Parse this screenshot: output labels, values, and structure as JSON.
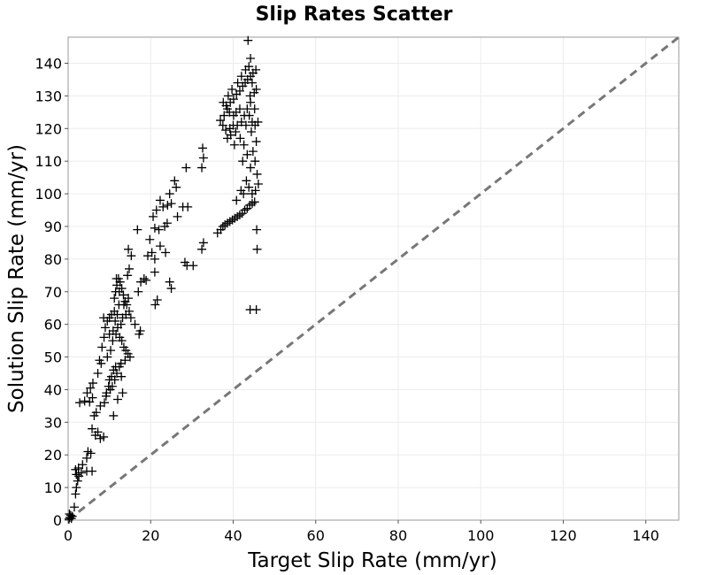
{
  "chart_data": {
    "type": "scatter",
    "title": "Slip Rates Scatter",
    "xlabel": "Target Slip Rate (mm/yr)",
    "ylabel": "Solution Slip Rate (mm/yr)",
    "xlim": [
      0,
      148
    ],
    "ylim": [
      0,
      148
    ],
    "xticks": [
      0,
      20,
      40,
      60,
      80,
      100,
      120,
      140
    ],
    "yticks": [
      0,
      10,
      20,
      30,
      40,
      50,
      60,
      70,
      80,
      90,
      100,
      110,
      120,
      130,
      140
    ],
    "grid": true,
    "marker": "plus",
    "marker_color": "#000000",
    "reference_line": {
      "from": [
        0,
        0
      ],
      "to": [
        148,
        148
      ],
      "style": "dashed",
      "color": "#777777"
    },
    "points": [
      [
        0.2,
        0.3
      ],
      [
        0.4,
        0.8
      ],
      [
        0.6,
        1.5
      ],
      [
        0.3,
        1.9
      ],
      [
        0.8,
        0.5
      ],
      [
        1.0,
        1.2
      ],
      [
        1.5,
        4
      ],
      [
        1.8,
        8
      ],
      [
        2.0,
        10
      ],
      [
        2.3,
        12
      ],
      [
        2.0,
        14
      ],
      [
        1.8,
        15.5
      ],
      [
        2.5,
        16
      ],
      [
        3.5,
        17
      ],
      [
        4.5,
        19
      ],
      [
        4.8,
        21
      ],
      [
        5.5,
        20.5
      ],
      [
        5.8,
        15
      ],
      [
        4.5,
        15
      ],
      [
        3.2,
        14.5
      ],
      [
        2.6,
        13.5
      ],
      [
        2.8,
        36
      ],
      [
        4.0,
        36.5
      ],
      [
        5.2,
        36.2
      ],
      [
        4.6,
        39
      ],
      [
        5.4,
        40.5
      ],
      [
        6.0,
        42
      ],
      [
        5.9,
        37.5
      ],
      [
        6.3,
        32
      ],
      [
        6.8,
        33
      ],
      [
        5.8,
        28
      ],
      [
        7.2,
        27
      ],
      [
        7.8,
        25
      ],
      [
        8.6,
        25.5
      ],
      [
        6.6,
        26
      ],
      [
        7.2,
        45
      ],
      [
        7.6,
        49
      ],
      [
        8.2,
        53
      ],
      [
        8.7,
        56
      ],
      [
        9.0,
        59
      ],
      [
        8.6,
        62
      ],
      [
        9.5,
        61
      ],
      [
        8.0,
        48
      ],
      [
        7.8,
        35
      ],
      [
        9.3,
        39
      ],
      [
        9.8,
        41
      ],
      [
        10.0,
        43
      ],
      [
        10.5,
        44
      ],
      [
        11.0,
        46
      ],
      [
        11.5,
        47
      ],
      [
        9.2,
        38
      ],
      [
        8.8,
        36
      ],
      [
        9.5,
        50
      ],
      [
        10.3,
        52
      ],
      [
        10.8,
        55
      ],
      [
        10.0,
        57
      ],
      [
        10.9,
        58
      ],
      [
        11.4,
        61
      ],
      [
        11.9,
        63
      ],
      [
        12.3,
        66
      ],
      [
        11.2,
        68
      ],
      [
        11.5,
        70
      ],
      [
        11.8,
        72
      ],
      [
        12.2,
        74
      ],
      [
        12.6,
        73
      ],
      [
        13.0,
        71
      ],
      [
        13.4,
        69
      ],
      [
        13.8,
        67
      ],
      [
        14.2,
        66
      ],
      [
        14.8,
        64
      ],
      [
        14.0,
        63
      ],
      [
        13.2,
        62
      ],
      [
        12.8,
        60
      ],
      [
        12.0,
        59
      ],
      [
        11.6,
        57
      ],
      [
        12.5,
        56
      ],
      [
        13.0,
        55
      ],
      [
        13.5,
        53
      ],
      [
        14.0,
        52
      ],
      [
        14.5,
        51
      ],
      [
        15.0,
        50
      ],
      [
        13.8,
        49
      ],
      [
        12.8,
        48
      ],
      [
        12.4,
        47
      ],
      [
        11.8,
        45
      ],
      [
        11.3,
        43
      ],
      [
        10.7,
        41
      ],
      [
        10.2,
        40
      ],
      [
        13.2,
        39
      ],
      [
        11.0,
        32
      ],
      [
        12.0,
        37
      ],
      [
        12.9,
        44
      ],
      [
        11.2,
        64
      ],
      [
        10.5,
        63
      ],
      [
        10.0,
        62
      ],
      [
        12.4,
        70
      ],
      [
        11.7,
        74
      ],
      [
        13.5,
        66
      ],
      [
        14.6,
        68
      ],
      [
        15.2,
        62
      ],
      [
        14.4,
        75
      ],
      [
        14.8,
        77
      ],
      [
        14.6,
        83
      ],
      [
        15.3,
        81
      ],
      [
        16.2,
        60
      ],
      [
        17.5,
        58
      ],
      [
        17.2,
        57
      ],
      [
        17.0,
        70
      ],
      [
        17.6,
        73
      ],
      [
        18.4,
        74
      ],
      [
        18.9,
        73.5
      ],
      [
        16.8,
        89
      ],
      [
        19.3,
        81
      ],
      [
        19.8,
        86
      ],
      [
        20.3,
        82
      ],
      [
        21.0,
        76
      ],
      [
        20.6,
        93
      ],
      [
        21.4,
        95
      ],
      [
        21.0,
        89.5
      ],
      [
        22.0,
        89
      ],
      [
        23.0,
        96
      ],
      [
        22.3,
        98
      ],
      [
        24.0,
        91
      ],
      [
        25.0,
        97
      ],
      [
        21.1,
        66
      ],
      [
        21.6,
        67.5
      ],
      [
        21.0,
        80
      ],
      [
        22.3,
        84
      ],
      [
        23.4,
        90
      ],
      [
        24.1,
        96.5
      ],
      [
        24.6,
        100
      ],
      [
        25.8,
        104
      ],
      [
        26.2,
        102
      ],
      [
        26.5,
        93
      ],
      [
        23.6,
        82
      ],
      [
        24.6,
        73
      ],
      [
        25.0,
        71
      ],
      [
        28.3,
        79
      ],
      [
        28.8,
        78
      ],
      [
        30.3,
        78
      ],
      [
        28.6,
        108
      ],
      [
        32.6,
        114
      ],
      [
        32.8,
        111
      ],
      [
        32.4,
        108
      ],
      [
        32.8,
        85
      ],
      [
        32.4,
        83
      ],
      [
        27.8,
        96
      ],
      [
        29.0,
        96
      ],
      [
        36.2,
        88
      ],
      [
        37.0,
        89
      ],
      [
        37.5,
        90
      ],
      [
        38.0,
        90.5
      ],
      [
        38.6,
        91
      ],
      [
        39.2,
        91.5
      ],
      [
        39.8,
        92
      ],
      [
        40.4,
        92.5
      ],
      [
        41.0,
        93
      ],
      [
        41.6,
        93.5
      ],
      [
        42.2,
        94
      ],
      [
        42.8,
        95
      ],
      [
        43.4,
        95.5
      ],
      [
        44.0,
        96.5
      ],
      [
        44.6,
        97
      ],
      [
        45.2,
        97.5
      ],
      [
        40.8,
        98
      ],
      [
        41.9,
        101
      ],
      [
        42.5,
        100
      ],
      [
        43.2,
        104
      ],
      [
        43.8,
        102
      ],
      [
        44.6,
        100
      ],
      [
        45.4,
        101
      ],
      [
        46.1,
        103
      ],
      [
        45.8,
        106
      ],
      [
        45.3,
        110
      ],
      [
        44.2,
        108
      ],
      [
        43.4,
        112
      ],
      [
        42.6,
        115
      ],
      [
        41.7,
        117
      ],
      [
        40.6,
        119
      ],
      [
        39.4,
        118
      ],
      [
        38.2,
        119.5
      ],
      [
        37.5,
        121
      ],
      [
        36.9,
        122.5
      ],
      [
        37.8,
        124
      ],
      [
        38.6,
        126
      ],
      [
        39.3,
        128
      ],
      [
        40.1,
        129
      ],
      [
        40.8,
        130.5
      ],
      [
        41.6,
        131.5
      ],
      [
        42.3,
        133
      ],
      [
        42.9,
        134
      ],
      [
        43.5,
        135
      ],
      [
        44.2,
        136
      ],
      [
        44.8,
        137
      ],
      [
        45.5,
        138
      ],
      [
        43.8,
        139
      ],
      [
        44.2,
        141.5
      ],
      [
        43.6,
        147
      ],
      [
        43.9,
        124
      ],
      [
        44.6,
        122
      ],
      [
        45.3,
        121
      ],
      [
        46.0,
        122
      ],
      [
        44.4,
        119
      ],
      [
        43.1,
        121
      ],
      [
        42.0,
        122
      ],
      [
        41.0,
        121
      ],
      [
        40.0,
        121
      ],
      [
        39.2,
        120
      ],
      [
        38.6,
        117
      ],
      [
        40.3,
        115
      ],
      [
        42.3,
        110
      ],
      [
        44.8,
        113
      ],
      [
        45.6,
        116
      ],
      [
        45.2,
        126
      ],
      [
        44.2,
        128
      ],
      [
        43.4,
        126
      ],
      [
        42.7,
        124
      ],
      [
        41.6,
        126
      ],
      [
        40.7,
        125
      ],
      [
        40.1,
        124
      ],
      [
        39.1,
        125
      ],
      [
        38.3,
        127
      ],
      [
        37.6,
        128
      ],
      [
        38.8,
        130
      ],
      [
        39.7,
        132
      ],
      [
        41.1,
        134
      ],
      [
        42.0,
        136
      ],
      [
        43.0,
        138
      ],
      [
        44.1,
        130
      ],
      [
        45.1,
        131
      ],
      [
        45.6,
        132
      ],
      [
        44.6,
        134
      ],
      [
        45.7,
        89
      ],
      [
        45.8,
        83
      ],
      [
        44.1,
        64.5
      ],
      [
        45.6,
        64.5
      ]
    ]
  }
}
